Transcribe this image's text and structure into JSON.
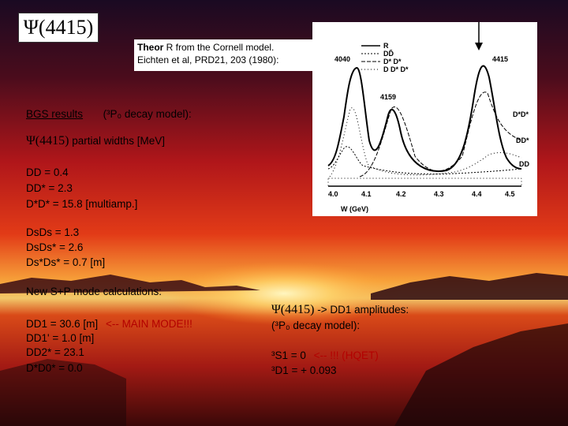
{
  "title": "Ψ(4415)",
  "caption": {
    "line1_bold": "Theor",
    "line1_rest": " R from the Cornell model.",
    "line2": "Eichten et al, PRD21, 203 (1980):"
  },
  "plot": {
    "peak_4040": "4040",
    "peak_4415": "4415",
    "peak_4159": "4159",
    "legend": [
      "R",
      "DD̄",
      "D* D*",
      "D D* D*"
    ],
    "curve_labels": [
      "D*D*",
      "DD*",
      "DD"
    ],
    "x_ticks": [
      "4.0",
      "4.1",
      "4.2",
      "4.3",
      "4.4",
      "4.5"
    ],
    "x_axis_label": "W (GeV)"
  },
  "left": {
    "bgs_label": "BGS results",
    "bgs_model": "(³P₀ decay model):",
    "widths_psi": "Ψ(4415)",
    "widths_rest": " partial widths [MeV]",
    "dd": "DD   =  0.4",
    "dd_star": "DD*  =  2.3",
    "dstar_dstar": "D*D*  = 15.8 [multiamp.]",
    "ds_ds": "DsDs     =  1.3",
    "ds_dsstar": "DsDs*  =  2.6",
    "dsstar_dsstar": "Ds*Ds* =   0.7 [m]",
    "new_modes": "New S+P mode calculations:",
    "dd1": "DD1   = 30.6 [m]",
    "main_mode": "<-- MAIN MODE!!!",
    "dd1prime": "DD1'  =  1.0 [m]",
    "dd2star": "DD2*  = 23.1",
    "dstar_d0star": "D*D0* =  0.0"
  },
  "right": {
    "amp_psi": "Ψ(4415)",
    "amp_rest": " -> DD1 amplitudes:",
    "amp_model": "(³P₀ decay model):",
    "s1": "³S1   =    0",
    "s1_note": "<-- !!! (HQET)",
    "d1": "³D1   =  + 0.093"
  }
}
